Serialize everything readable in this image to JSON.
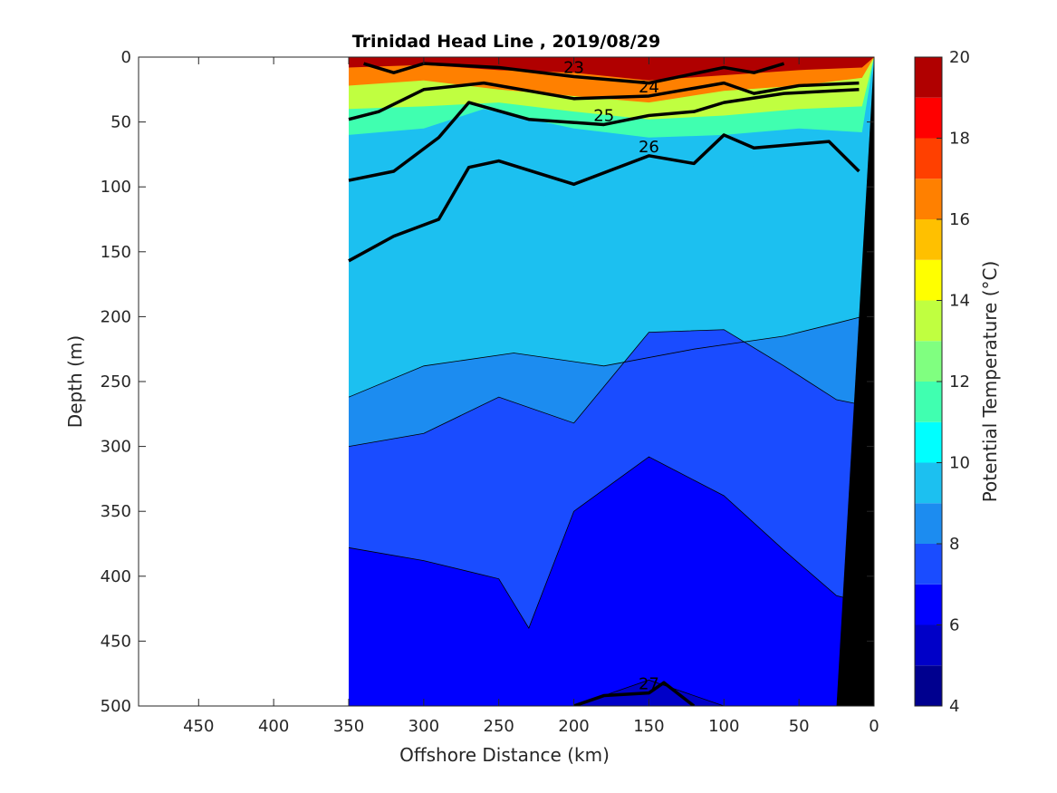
{
  "chart_data": {
    "type": "heatmap",
    "title": "Trinidad Head Line , 2019/08/29",
    "xlabel": "Offshore Distance (km)",
    "ylabel": "Depth (m)",
    "colorbar_label": "Potential Temperature (°C)",
    "xlim": [
      490,
      0
    ],
    "ylim": [
      0,
      500
    ],
    "x_ticks": [
      450,
      400,
      350,
      300,
      250,
      200,
      150,
      100,
      50,
      0
    ],
    "y_ticks": [
      0,
      50,
      100,
      150,
      200,
      250,
      300,
      350,
      400,
      450,
      500
    ],
    "colorbar_range": [
      4,
      20
    ],
    "colorbar_ticks": [
      4,
      6,
      8,
      10,
      12,
      14,
      16,
      18,
      20
    ],
    "colorbar_levels": [
      4,
      5,
      6,
      7,
      8,
      9,
      10,
      11,
      12,
      13,
      14,
      15,
      16,
      17,
      18,
      19,
      20
    ],
    "colorbar_colors": [
      "#00008f",
      "#0000c8",
      "#0000ff",
      "#1a4cff",
      "#1c8cf0",
      "#1cc0f0",
      "#00ffff",
      "#40ffb0",
      "#80ff80",
      "#c0ff40",
      "#ffff00",
      "#ffc000",
      "#ff8000",
      "#ff4000",
      "#ff0000",
      "#b00000"
    ],
    "data_extent_km": [
      350,
      0
    ],
    "temperature_bands": [
      {
        "temp": 8.5,
        "depth": [
          [
            350,
            262
          ],
          [
            300,
            238
          ],
          [
            240,
            228
          ],
          [
            180,
            238
          ],
          [
            120,
            225
          ],
          [
            60,
            215
          ],
          [
            25,
            205
          ],
          [
            8,
            200
          ]
        ]
      },
      {
        "temp": 7.5,
        "depth": [
          [
            350,
            300
          ],
          [
            300,
            290
          ],
          [
            250,
            262
          ],
          [
            200,
            282
          ],
          [
            150,
            212
          ],
          [
            100,
            210
          ],
          [
            60,
            238
          ],
          [
            25,
            264
          ],
          [
            8,
            268
          ]
        ]
      },
      {
        "temp": 6.5,
        "depth": [
          [
            350,
            378
          ],
          [
            300,
            388
          ],
          [
            250,
            402
          ],
          [
            230,
            440
          ],
          [
            200,
            350
          ],
          [
            150,
            308
          ],
          [
            100,
            338
          ],
          [
            60,
            380
          ],
          [
            25,
            415
          ],
          [
            8,
            420
          ]
        ]
      },
      {
        "temp": 5.5,
        "depth": [
          [
            350,
            500
          ],
          [
            330,
            500
          ],
          [
            240,
            500
          ],
          [
            200,
            500
          ],
          [
            150,
            480
          ],
          [
            100,
            500
          ],
          [
            25,
            500
          ],
          [
            8,
            500
          ]
        ]
      }
    ],
    "surface_bands": [
      {
        "temp": 19.0,
        "depth": [
          [
            350,
            8
          ],
          [
            300,
            6
          ],
          [
            250,
            10
          ],
          [
            200,
            12
          ],
          [
            150,
            18
          ],
          [
            100,
            14
          ],
          [
            50,
            10
          ],
          [
            8,
            8
          ]
        ]
      },
      {
        "temp": 16.5,
        "depth": [
          [
            350,
            22
          ],
          [
            300,
            18
          ],
          [
            250,
            25
          ],
          [
            200,
            30
          ],
          [
            150,
            35
          ],
          [
            100,
            26
          ],
          [
            50,
            22
          ],
          [
            8,
            16
          ]
        ]
      },
      {
        "temp": 13.5,
        "depth": [
          [
            350,
            40
          ],
          [
            300,
            38
          ],
          [
            250,
            35
          ],
          [
            200,
            42
          ],
          [
            150,
            48
          ],
          [
            100,
            45
          ],
          [
            50,
            40
          ],
          [
            8,
            38
          ]
        ]
      },
      {
        "temp": 11.0,
        "depth": [
          [
            350,
            60
          ],
          [
            300,
            55
          ],
          [
            260,
            40
          ],
          [
            200,
            55
          ],
          [
            150,
            62
          ],
          [
            100,
            60
          ],
          [
            50,
            55
          ],
          [
            8,
            58
          ]
        ]
      },
      {
        "temp": 9.5,
        "depth": [
          [
            350,
            90
          ],
          [
            300,
            80
          ],
          [
            260,
            70
          ],
          [
            200,
            82
          ],
          [
            150,
            95
          ],
          [
            100,
            88
          ],
          [
            50,
            78
          ],
          [
            8,
            75
          ]
        ]
      },
      {
        "temp": 9.0,
        "depth": [
          [
            350,
            150
          ],
          [
            300,
            125
          ],
          [
            260,
            90
          ],
          [
            200,
            115
          ],
          [
            150,
            125
          ],
          [
            100,
            110
          ],
          [
            50,
            100
          ],
          [
            8,
            98
          ]
        ]
      }
    ],
    "density_contours": [
      {
        "label": "23",
        "points": [
          [
            340,
            5
          ],
          [
            320,
            12
          ],
          [
            300,
            5
          ],
          [
            250,
            8
          ],
          [
            200,
            15
          ],
          [
            150,
            20
          ],
          [
            100,
            8
          ],
          [
            80,
            12
          ],
          [
            60,
            5
          ]
        ]
      },
      {
        "label": "24",
        "points": [
          [
            350,
            48
          ],
          [
            330,
            42
          ],
          [
            300,
            25
          ],
          [
            260,
            20
          ],
          [
            200,
            32
          ],
          [
            150,
            30
          ],
          [
            120,
            24
          ],
          [
            100,
            20
          ],
          [
            80,
            28
          ],
          [
            50,
            22
          ],
          [
            10,
            20
          ]
        ]
      },
      {
        "label": "25",
        "points": [
          [
            350,
            95
          ],
          [
            320,
            88
          ],
          [
            290,
            62
          ],
          [
            270,
            35
          ],
          [
            230,
            48
          ],
          [
            180,
            52
          ],
          [
            150,
            45
          ],
          [
            120,
            42
          ],
          [
            100,
            35
          ],
          [
            60,
            28
          ],
          [
            10,
            25
          ]
        ]
      },
      {
        "label": "26",
        "points": [
          [
            350,
            157
          ],
          [
            320,
            138
          ],
          [
            290,
            125
          ],
          [
            270,
            85
          ],
          [
            250,
            80
          ],
          [
            200,
            98
          ],
          [
            150,
            76
          ],
          [
            120,
            82
          ],
          [
            100,
            60
          ],
          [
            80,
            70
          ],
          [
            60,
            68
          ],
          [
            30,
            65
          ],
          [
            10,
            88
          ]
        ]
      },
      {
        "label": "27",
        "points": [
          [
            200,
            500
          ],
          [
            180,
            492
          ],
          [
            150,
            490
          ],
          [
            140,
            482
          ],
          [
            120,
            500
          ]
        ]
      }
    ],
    "bathymetry": {
      "surface_km": 0,
      "bottom_km": 25
    },
    "colors": {
      "background": "#ffffff",
      "axis": "#262626",
      "bathymetry": "#000000",
      "contour": "#000000"
    }
  }
}
